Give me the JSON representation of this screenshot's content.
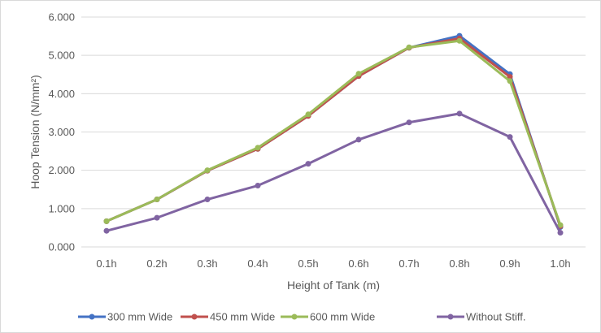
{
  "chart_data": {
    "type": "line",
    "title": "",
    "xlabel": "Height of Tank (m)",
    "ylabel": "Hoop Tension (N/mm²)",
    "ylim": [
      0,
      6
    ],
    "y_ticks": [
      "0.000",
      "1.000",
      "2.000",
      "3.000",
      "4.000",
      "5.000",
      "6.000"
    ],
    "grid": "horizontal",
    "legend_position": "bottom",
    "categories": [
      "0.1h",
      "0.2h",
      "0.3h",
      "0.4h",
      "0.5h",
      "0.6h",
      "0.7h",
      "0.8h",
      "0.9h",
      "1.0h"
    ],
    "series": [
      {
        "name": "300 mm Wide",
        "color": "#4472C4",
        "values": [
          0.67,
          1.24,
          1.99,
          2.56,
          3.42,
          4.46,
          5.2,
          5.51,
          4.51,
          0.52
        ]
      },
      {
        "name": "450 mm Wide",
        "color": "#C0504D",
        "values": [
          0.67,
          1.24,
          1.99,
          2.56,
          3.42,
          4.46,
          5.2,
          5.44,
          4.44,
          0.54
        ]
      },
      {
        "name": "600 mm Wide",
        "color": "#9BBB59",
        "values": [
          0.67,
          1.24,
          2.0,
          2.59,
          3.46,
          4.52,
          5.21,
          5.38,
          4.33,
          0.57
        ]
      },
      {
        "name": "Without Stiff.",
        "color": "#8064A2",
        "values": [
          0.42,
          0.76,
          1.24,
          1.6,
          2.17,
          2.8,
          3.25,
          3.48,
          2.87,
          0.37
        ]
      }
    ]
  }
}
